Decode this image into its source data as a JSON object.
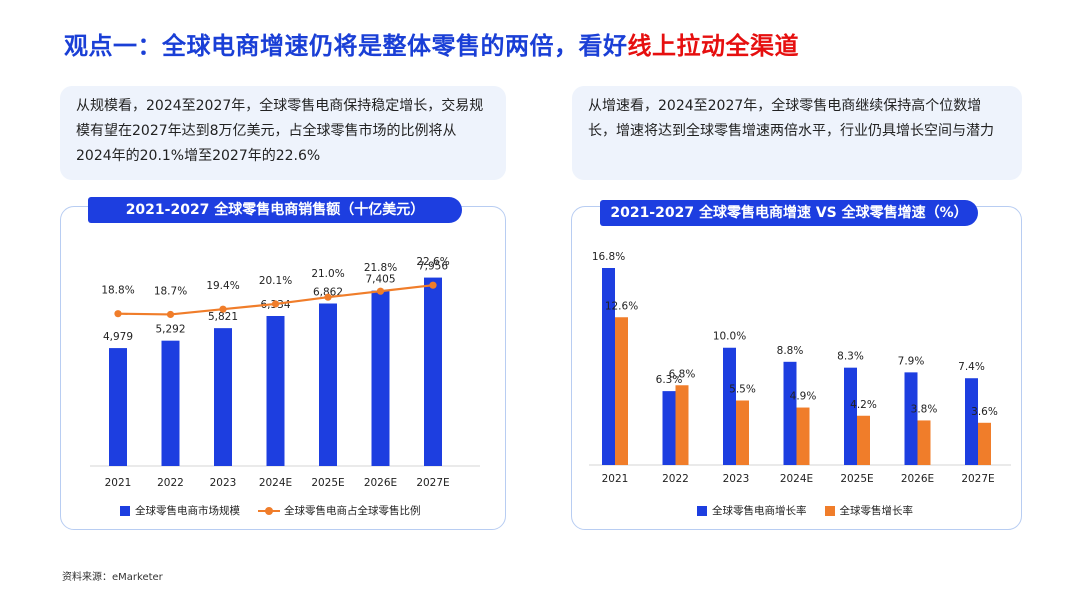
{
  "title": {
    "main": "观点一：全球电商增速仍将是整体零售的两倍，看好",
    "highlight": "线上拉动全渠道"
  },
  "notes": {
    "left": "从规模看，2024至2027年，全球零售电商保持稳定增长，交易规模有望在2027年达到8万亿美元，占全球零售市场的比例将从2024年的20.1%增至2027年的22.6%",
    "right": "从增速看，2024至2027年，全球零售电商继续保持高个位数增长，增速将达到全球零售增速两倍水平，行业仍具增长空间与潜力"
  },
  "colors": {
    "blue": "#1d3ee0",
    "orange": "#f07d2a",
    "highlight": "#e60f0f"
  },
  "chart_data": [
    {
      "type": "bar",
      "title": "2021-2027 全球零售电商销售额（十亿美元）",
      "categories": [
        "2021",
        "2022",
        "2023",
        "2024E",
        "2025E",
        "2026E",
        "2027E"
      ],
      "series": [
        {
          "name": "全球零售电商市场规模",
          "type": "bar",
          "values": [
            4979,
            5292,
            5821,
            6334,
            6862,
            7405,
            7956
          ],
          "labels": [
            "4,979",
            "5,292",
            "5,821",
            "6,334",
            "6,862",
            "7,405",
            "7,956"
          ]
        },
        {
          "name": "全球零售电商占全球零售比例",
          "type": "line",
          "values": [
            18.8,
            18.7,
            19.4,
            20.1,
            21.0,
            21.8,
            22.6
          ],
          "labels": [
            "18.8%",
            "18.7%",
            "19.4%",
            "20.1%",
            "21.0%",
            "21.8%",
            "22.6%"
          ]
        }
      ],
      "legend_position": "bottom",
      "grid": false
    },
    {
      "type": "bar",
      "title": "2021-2027 全球零售电商增速 VS 全球零售增速（%）",
      "categories": [
        "2021",
        "2022",
        "2023",
        "2024E",
        "2025E",
        "2026E",
        "2027E"
      ],
      "series": [
        {
          "name": "全球零售电商增长率",
          "values": [
            16.8,
            6.3,
            10.0,
            8.8,
            8.3,
            7.9,
            7.4
          ],
          "labels": [
            "16.8%",
            "6.3%",
            "10.0%",
            "8.8%",
            "8.3%",
            "7.9%",
            "7.4%"
          ]
        },
        {
          "name": "全球零售增长率",
          "values": [
            12.6,
            6.8,
            5.5,
            4.9,
            4.2,
            3.8,
            3.6
          ],
          "labels": [
            "12.6%",
            "6.8%",
            "5.5%",
            "4.9%",
            "4.2%",
            "3.8%",
            "3.6%"
          ]
        }
      ],
      "legend_position": "bottom",
      "grid": false
    }
  ],
  "source": "资料来源：eMarketer"
}
